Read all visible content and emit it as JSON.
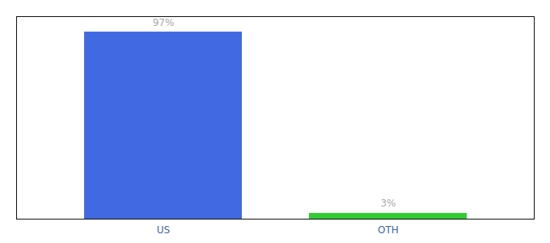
{
  "chart_data": {
    "type": "bar",
    "categories": [
      "US",
      "OTH"
    ],
    "values": [
      97,
      3
    ],
    "value_labels": [
      "97%",
      "3%"
    ],
    "colors": [
      "#4169e1",
      "#33cc33"
    ],
    "ylim": [
      0,
      105
    ],
    "yticks": [],
    "data_labels": true,
    "tick_labels": "x"
  }
}
